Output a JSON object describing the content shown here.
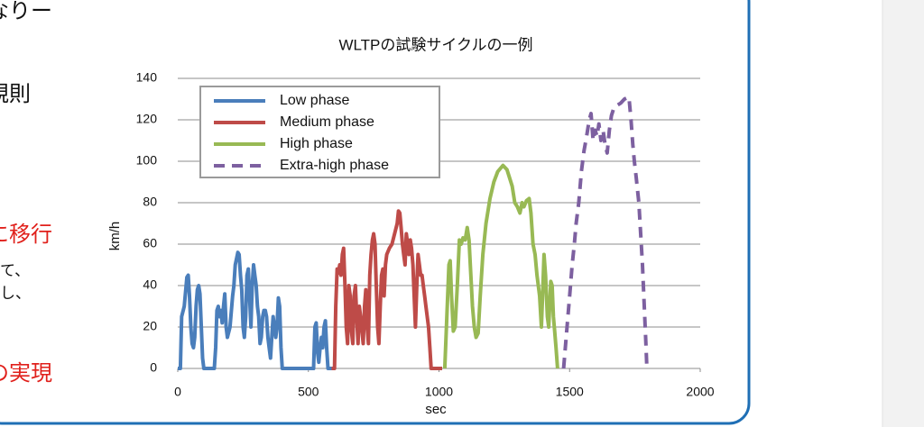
{
  "side_text": [
    {
      "text": "なりー",
      "color": "#111111",
      "size": 24
    },
    {
      "text": "規則",
      "color": "#111111",
      "size": 24
    },
    {
      "text": "に移行",
      "color": "#e0201b",
      "size": 24
    },
    {
      "text": "て、",
      "color": "#111111",
      "size": 17
    },
    {
      "text": "し、",
      "color": "#111111",
      "size": 17
    },
    {
      "text": "の実現",
      "color": "#e0201b",
      "size": 24
    }
  ],
  "chart_data": {
    "type": "line",
    "title": "WLTPの試験サイクルの一例",
    "x_label": "sec",
    "y_label": "km/h",
    "xlim": [
      0,
      2000
    ],
    "xticks": [
      0,
      500,
      1000,
      1500,
      2000
    ],
    "ylim": [
      0,
      140
    ],
    "yticks": [
      0,
      20,
      40,
      60,
      80,
      100,
      120,
      140
    ],
    "grid": true,
    "legend": "upper left",
    "series": [
      {
        "name": "Low phase",
        "color": "#4a7ebb",
        "line_style": "solid",
        "x": [
          0,
          10,
          15,
          25,
          35,
          40,
          45,
          50,
          55,
          60,
          65,
          70,
          75,
          80,
          85,
          90,
          95,
          100,
          140,
          145,
          150,
          155,
          160,
          165,
          170,
          175,
          180,
          185,
          190,
          200,
          210,
          215,
          220,
          230,
          235,
          240,
          245,
          250,
          255,
          260,
          265,
          270,
          275,
          280,
          285,
          290,
          295,
          300,
          305,
          310,
          315,
          320,
          325,
          330,
          335,
          340,
          345,
          350,
          355,
          360,
          365,
          370,
          375,
          380,
          385,
          390,
          395,
          400,
          520,
          525,
          530,
          535,
          540,
          545,
          550,
          555,
          560,
          565,
          570,
          575,
          589
        ],
        "values": [
          0,
          0,
          25,
          30,
          44,
          45,
          35,
          20,
          12,
          10,
          15,
          30,
          38,
          40,
          36,
          20,
          5,
          0,
          0,
          10,
          28,
          30,
          25,
          28,
          22,
          30,
          36,
          20,
          15,
          20,
          35,
          40,
          50,
          56,
          55,
          45,
          38,
          20,
          15,
          25,
          45,
          48,
          35,
          20,
          40,
          50,
          45,
          40,
          30,
          25,
          12,
          15,
          25,
          28,
          28,
          25,
          15,
          10,
          5,
          15,
          25,
          20,
          15,
          20,
          34,
          30,
          10,
          0,
          0,
          20,
          22,
          8,
          3,
          10,
          15,
          10,
          20,
          23,
          10,
          0,
          0
        ]
      },
      {
        "name": "Medium phase",
        "color": "#be4b48",
        "line_style": "solid",
        "x": [
          589,
          600,
          605,
          610,
          615,
          620,
          625,
          630,
          635,
          640,
          645,
          650,
          655,
          660,
          665,
          670,
          675,
          680,
          685,
          690,
          695,
          700,
          710,
          715,
          720,
          725,
          730,
          735,
          740,
          745,
          750,
          755,
          760,
          765,
          770,
          775,
          780,
          785,
          790,
          795,
          800,
          810,
          820,
          830,
          840,
          845,
          850,
          855,
          860,
          865,
          870,
          875,
          880,
          885,
          890,
          895,
          900,
          905,
          910,
          915,
          920,
          925,
          930,
          935,
          940,
          945,
          950,
          960,
          965,
          970,
          1012
        ],
        "values": [
          0,
          0,
          30,
          48,
          46,
          50,
          45,
          55,
          58,
          40,
          20,
          12,
          40,
          35,
          18,
          12,
          35,
          40,
          25,
          12,
          30,
          25,
          12,
          30,
          38,
          20,
          12,
          45,
          55,
          62,
          65,
          60,
          40,
          20,
          12,
          30,
          45,
          48,
          35,
          50,
          55,
          58,
          60,
          65,
          70,
          76,
          75,
          68,
          60,
          55,
          50,
          65,
          60,
          55,
          62,
          58,
          50,
          35,
          20,
          40,
          55,
          50,
          45,
          45,
          40,
          35,
          30,
          20,
          10,
          0,
          0
        ]
      },
      {
        "name": "High phase",
        "color": "#98b954",
        "line_style": "solid",
        "x": [
          1022,
          1030,
          1038,
          1043,
          1048,
          1055,
          1062,
          1070,
          1078,
          1085,
          1092,
          1100,
          1108,
          1115,
          1120,
          1128,
          1135,
          1142,
          1150,
          1158,
          1168,
          1180,
          1195,
          1210,
          1225,
          1245,
          1260,
          1270,
          1280,
          1290,
          1300,
          1310,
          1318,
          1325,
          1335,
          1345,
          1352,
          1360,
          1368,
          1375,
          1385,
          1392,
          1398,
          1402,
          1408,
          1415,
          1420,
          1428,
          1433,
          1438,
          1443,
          1448,
          1454
        ],
        "values": [
          0,
          25,
          50,
          52,
          35,
          18,
          20,
          40,
          62,
          60,
          63,
          62,
          68,
          62,
          50,
          30,
          20,
          15,
          17,
          35,
          55,
          70,
          82,
          90,
          95,
          98,
          96,
          92,
          88,
          80,
          78,
          75,
          80,
          78,
          81,
          82,
          75,
          60,
          55,
          45,
          35,
          20,
          40,
          55,
          45,
          25,
          20,
          42,
          40,
          25,
          18,
          10,
          0
        ]
      },
      {
        "name": "Extra-high phase",
        "color": "#7d60a0",
        "line_style": "dashed",
        "x": [
          1477,
          1490,
          1500,
          1510,
          1518,
          1525,
          1535,
          1545,
          1555,
          1565,
          1575,
          1582,
          1590,
          1598,
          1605,
          1612,
          1620,
          1628,
          1636,
          1644,
          1652,
          1660,
          1670,
          1682,
          1695,
          1710,
          1727,
          1735,
          1742,
          1748,
          1755,
          1765,
          1772,
          1779,
          1786,
          1792,
          1796
        ],
        "values": [
          0,
          20,
          35,
          50,
          60,
          70,
          80,
          95,
          105,
          112,
          120,
          123,
          110,
          115,
          112,
          118,
          110,
          115,
          108,
          104,
          115,
          122,
          126,
          127,
          128,
          130,
          131,
          120,
          108,
          100,
          92,
          80,
          65,
          50,
          30,
          12,
          0
        ]
      }
    ]
  }
}
